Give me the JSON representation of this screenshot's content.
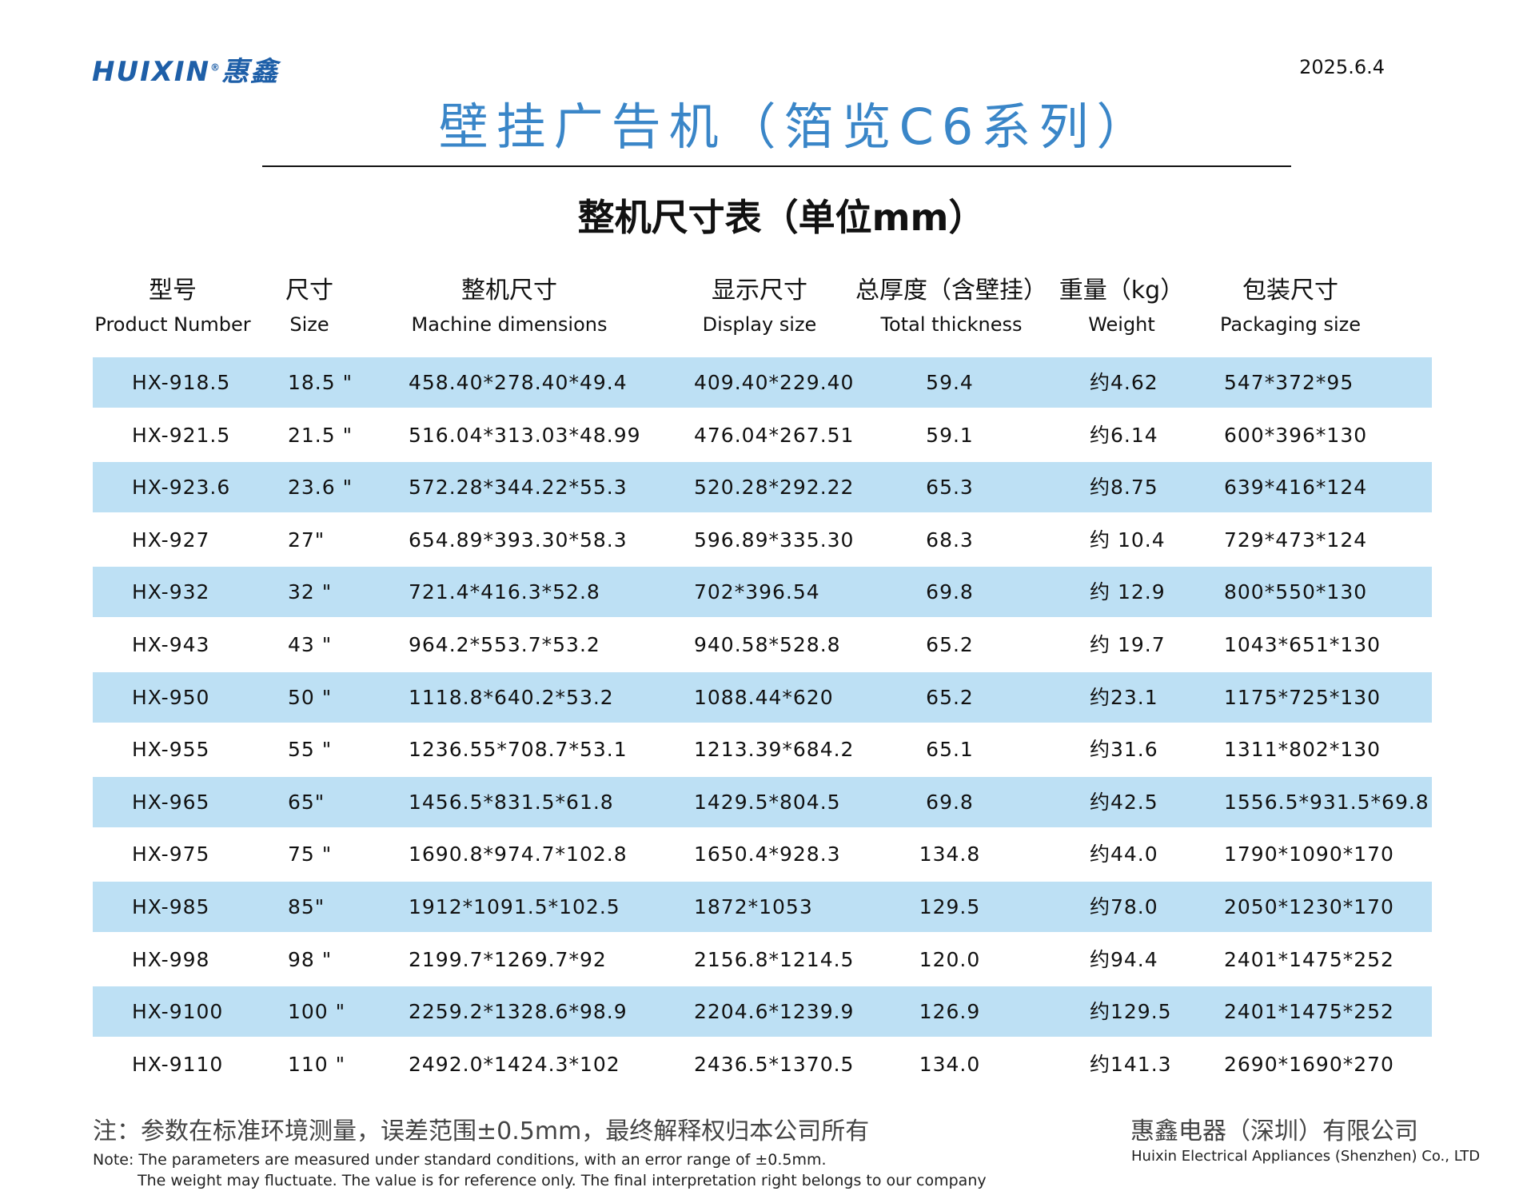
{
  "header": {
    "logo": "HUIXIN",
    "logo_mark": "®",
    "logo_cn": "惠鑫",
    "date": "2025.6.4"
  },
  "title": "壁挂广告机（箔览C6系列）",
  "subtitle": "整机尺寸表（单位mm）",
  "table": {
    "columns": [
      {
        "cn": "型号",
        "en": "Product Number"
      },
      {
        "cn": "尺寸",
        "en": "Size"
      },
      {
        "cn": "整机尺寸",
        "en": "Machine dimensions"
      },
      {
        "cn": "显示尺寸",
        "en": "Display size"
      },
      {
        "cn": "总厚度（含壁挂）",
        "en": "Total thickness"
      },
      {
        "cn": "重量（kg）",
        "en": "Weight"
      },
      {
        "cn": "包装尺寸",
        "en": "Packaging size"
      }
    ],
    "rows": [
      [
        "HX-918.5",
        "18.5 \"",
        "458.40*278.40*49.4",
        "409.40*229.40",
        "59.4",
        "约4.62",
        "547*372*95"
      ],
      [
        "HX-921.5",
        "21.5 \"",
        "516.04*313.03*48.99",
        "476.04*267.51",
        "59.1",
        "约6.14",
        "600*396*130"
      ],
      [
        "HX-923.6",
        "23.6 \"",
        "572.28*344.22*55.3",
        "520.28*292.22",
        "65.3",
        "约8.75",
        "639*416*124"
      ],
      [
        "HX-927",
        "27\"",
        "654.89*393.30*58.3",
        "596.89*335.30",
        "68.3",
        "约 10.4",
        "729*473*124"
      ],
      [
        "HX-932",
        "32 \"",
        "721.4*416.3*52.8",
        "702*396.54",
        "69.8",
        "约 12.9",
        "800*550*130"
      ],
      [
        "HX-943",
        "43 \"",
        "964.2*553.7*53.2",
        "940.58*528.8",
        "65.2",
        "约 19.7",
        "1043*651*130"
      ],
      [
        "HX-950",
        "50 \"",
        "1118.8*640.2*53.2",
        "1088.44*620",
        "65.2",
        "约23.1",
        "1175*725*130"
      ],
      [
        "HX-955",
        "55 \"",
        "1236.55*708.7*53.1",
        "1213.39*684.2",
        "65.1",
        "约31.6",
        "1311*802*130"
      ],
      [
        "HX-965",
        "65\"",
        "1456.5*831.5*61.8",
        "1429.5*804.5",
        "69.8",
        "约42.5",
        "1556.5*931.5*69.8"
      ],
      [
        "HX-975",
        "75 \"",
        "1690.8*974.7*102.8",
        "1650.4*928.3",
        "134.8",
        "约44.0",
        "1790*1090*170"
      ],
      [
        "HX-985",
        "85\"",
        "1912*1091.5*102.5",
        "1872*1053",
        "129.5",
        "约78.0",
        "2050*1230*170"
      ],
      [
        "HX-998",
        "98 \"",
        "2199.7*1269.7*92",
        "2156.8*1214.5",
        "120.0",
        "约94.4",
        "2401*1475*252"
      ],
      [
        "HX-9100",
        "100 \"",
        "2259.2*1328.6*98.9",
        "2204.6*1239.9",
        "126.9",
        "约129.5",
        "2401*1475*252"
      ],
      [
        "HX-9110",
        "110 \"",
        "2492.0*1424.3*102",
        "2436.5*1370.5",
        "134.0",
        "约141.3",
        "2690*1690*270"
      ]
    ]
  },
  "footer": {
    "note_cn": "注：参数在标准环境测量，误差范围±0.5mm，最终解释权归本公司所有",
    "note_en": [
      "Note: The parameters are measured under standard conditions, with an error range of ±0.5mm.",
      "The weight may fluctuate. The value is for reference only. The final interpretation right belongs to our company"
    ],
    "company_cn": "惠鑫电器（深圳）有限公司",
    "company_en": "Huixin Electrical Appliances (Shenzhen) Co., LTD"
  }
}
